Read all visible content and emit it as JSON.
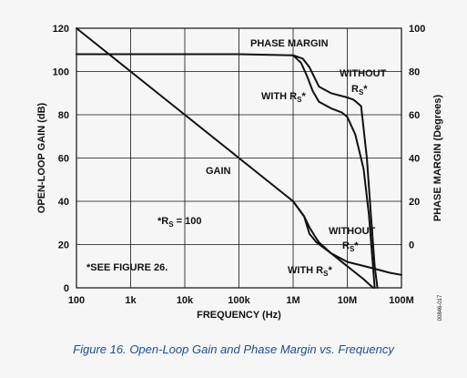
{
  "caption": "Figure 16. Open-Loop Gain and Phase Margin vs. Frequency",
  "doc_id": "00846-017",
  "colors": {
    "background": "#f6f6f6",
    "ink": "#111111",
    "caption": "#1c4f8f"
  },
  "chart_data": {
    "type": "line",
    "xlabel": "FREQUENCY (Hz)",
    "ylabel_left": "OPEN-LOOP GAIN (dB)",
    "ylabel_right": "PHASE MARGIN (Degrees)",
    "xscale": "log",
    "xlim": [
      100,
      100000000
    ],
    "ylim_left": [
      0,
      120
    ],
    "ylim_right": [
      -20,
      100
    ],
    "grid": true,
    "x_ticks": [
      {
        "value": 100,
        "label": "100"
      },
      {
        "value": 1000,
        "label": "1k"
      },
      {
        "value": 10000,
        "label": "10k"
      },
      {
        "value": 100000,
        "label": "100k"
      },
      {
        "value": 1000000,
        "label": "1M"
      },
      {
        "value": 10000000,
        "label": "10M"
      },
      {
        "value": 100000000,
        "label": "100M"
      }
    ],
    "y_left_ticks": [
      {
        "value": 0,
        "label": "0"
      },
      {
        "value": 20,
        "label": "20"
      },
      {
        "value": 40,
        "label": "40"
      },
      {
        "value": 60,
        "label": "60"
      },
      {
        "value": 80,
        "label": "80"
      },
      {
        "value": 100,
        "label": "100"
      },
      {
        "value": 120,
        "label": "120"
      }
    ],
    "y_right_ticks": [
      {
        "value": 0,
        "label": "0"
      },
      {
        "value": 20,
        "label": "20"
      },
      {
        "value": 40,
        "label": "40"
      },
      {
        "value": 60,
        "label": "60"
      },
      {
        "value": 80,
        "label": "80"
      },
      {
        "value": 100,
        "label": "100"
      }
    ],
    "series": [
      {
        "axis": "left",
        "points": [
          [
            100,
            120
          ],
          [
            1000,
            100
          ],
          [
            10000,
            80
          ],
          [
            100000,
            60
          ],
          [
            1000000,
            40
          ],
          [
            1600000,
            33
          ],
          [
            2000000,
            25
          ],
          [
            2700000,
            21
          ],
          [
            5000000,
            16
          ],
          [
            10000000,
            10
          ],
          [
            20000000,
            4
          ],
          [
            30000000,
            0
          ]
        ]
      },
      {
        "axis": "left",
        "points": [
          [
            1000000,
            40
          ],
          [
            1600000,
            33
          ],
          [
            2000000,
            28
          ],
          [
            2500000,
            24
          ],
          [
            3000000,
            21
          ],
          [
            5000000,
            16
          ],
          [
            10000000,
            12
          ],
          [
            30000000,
            9
          ],
          [
            60000000,
            7
          ],
          [
            100000000,
            6
          ]
        ]
      },
      {
        "axis": "right",
        "points": [
          [
            100,
            88
          ],
          [
            100000,
            88
          ],
          [
            1000000,
            87.5
          ],
          [
            1500000,
            86
          ],
          [
            2000000,
            82
          ],
          [
            2500000,
            77
          ],
          [
            3000000,
            73
          ],
          [
            5000000,
            70
          ],
          [
            10000000,
            68
          ],
          [
            13000000,
            67
          ],
          [
            18000000,
            64
          ],
          [
            23000000,
            40
          ],
          [
            28000000,
            10
          ],
          [
            32000000,
            -10
          ],
          [
            36000000,
            -20
          ]
        ]
      },
      {
        "axis": "right",
        "points": [
          [
            1000000,
            87.5
          ],
          [
            1400000,
            84
          ],
          [
            1800000,
            78
          ],
          [
            2300000,
            71
          ],
          [
            3000000,
            66
          ],
          [
            5000000,
            63
          ],
          [
            8000000,
            61
          ],
          [
            10000000,
            59
          ],
          [
            14000000,
            51
          ],
          [
            20000000,
            35
          ],
          [
            25000000,
            14
          ],
          [
            32000000,
            -20
          ]
        ]
      }
    ],
    "annotations": [
      {
        "text": "PHASE MARGIN"
      },
      {
        "text": "WITHOUT"
      },
      {
        "text": "R",
        "sub": "S",
        "suffix": "*"
      },
      {
        "text": "WITH R",
        "sub": "S",
        "suffix": "*"
      },
      {
        "text": "GAIN"
      },
      {
        "text": "*R",
        "sub": "S",
        "suffix": " = 100"
      },
      {
        "text": "WITHOUT"
      },
      {
        "text": "R",
        "sub": "S",
        "suffix": "*"
      },
      {
        "text": "*SEE FIGURE 26."
      },
      {
        "text": "WITH R",
        "sub": "S",
        "suffix": "*"
      }
    ]
  }
}
